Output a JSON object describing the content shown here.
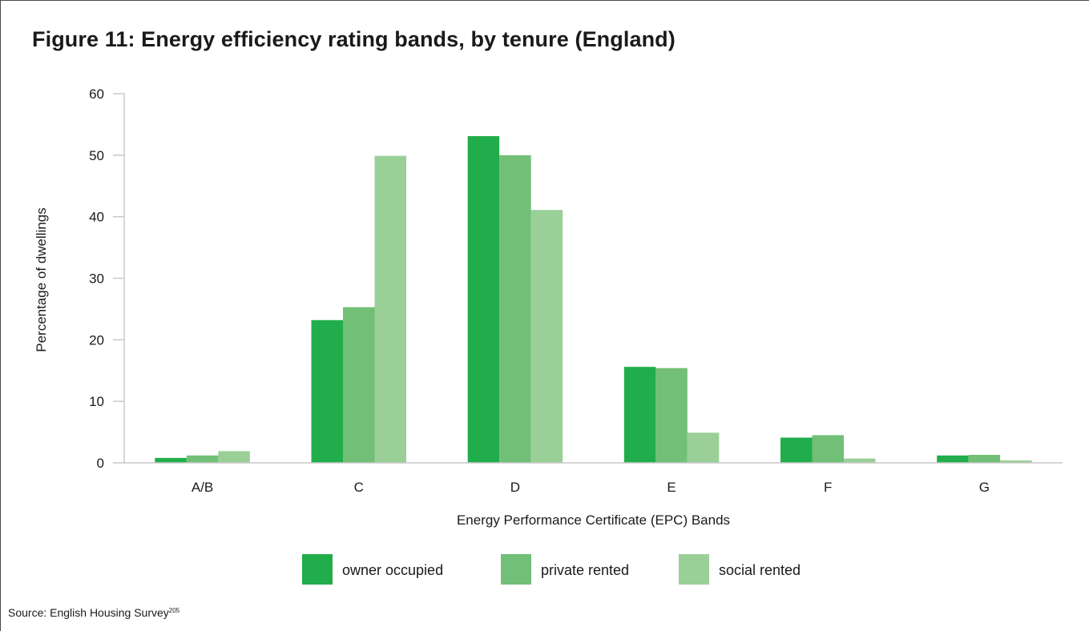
{
  "title": "Figure 11: Energy efficiency rating bands, by tenure (England)",
  "source": {
    "text": "Source: English Housing Survey",
    "note_ref": "205"
  },
  "chart_data": {
    "type": "bar",
    "title": "Figure 11: Energy efficiency rating bands, by tenure (England)",
    "xlabel": "Energy Performance Certificate (EPC) Bands",
    "ylabel": "Percentage of dwellings",
    "categories": [
      "A/B",
      "C",
      "D",
      "E",
      "F",
      "G"
    ],
    "yticks": [
      0,
      10,
      20,
      30,
      40,
      50,
      60
    ],
    "ylim": [
      0,
      60
    ],
    "grid": false,
    "legend_position": "bottom",
    "series": [
      {
        "name": "owner occupied",
        "color": "#21ad4b",
        "values": [
          0.8,
          23.2,
          53.1,
          15.6,
          4.1,
          1.2
        ]
      },
      {
        "name": "private rented",
        "color": "#72bf78",
        "values": [
          1.2,
          25.3,
          50.0,
          15.4,
          4.5,
          1.3
        ]
      },
      {
        "name": "social rented",
        "color": "#9bcf98",
        "values": [
          1.9,
          49.9,
          41.1,
          4.9,
          0.7,
          0.4
        ]
      }
    ]
  }
}
